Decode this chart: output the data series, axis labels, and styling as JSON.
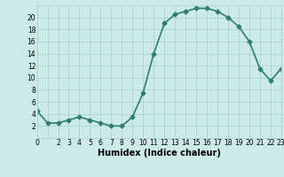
{
  "x": [
    0,
    1,
    2,
    3,
    4,
    5,
    6,
    7,
    8,
    9,
    10,
    11,
    12,
    13,
    14,
    15,
    16,
    17,
    18,
    19,
    20,
    21,
    22,
    23
  ],
  "y": [
    4.5,
    2.5,
    2.5,
    3.0,
    3.5,
    3.0,
    2.5,
    2.0,
    2.0,
    3.5,
    7.5,
    14.0,
    19.0,
    20.5,
    21.0,
    21.5,
    21.5,
    21.0,
    20.0,
    18.5,
    16.0,
    11.5,
    9.5,
    11.5
  ],
  "xlabel": "Humidex (Indice chaleur)",
  "xlim": [
    0,
    23
  ],
  "ylim": [
    0,
    22
  ],
  "yticks": [
    2,
    4,
    6,
    8,
    10,
    12,
    14,
    16,
    18,
    20
  ],
  "xticks": [
    0,
    1,
    2,
    3,
    4,
    5,
    6,
    7,
    8,
    9,
    10,
    11,
    12,
    13,
    14,
    15,
    16,
    17,
    18,
    19,
    20,
    21,
    22,
    23
  ],
  "xtick_labels": [
    "0",
    "",
    "2",
    "3",
    "4",
    "5",
    "6",
    "7",
    "8",
    "9",
    "10",
    "11",
    "12",
    "13",
    "14",
    "15",
    "16",
    "17",
    "18",
    "19",
    "20",
    "21",
    "22",
    "23"
  ],
  "line_color": "#2e7d6e",
  "marker": "D",
  "marker_size": 2.5,
  "bg_color": "#cceae7",
  "grid_color": "#aad4d0",
  "xlabel_fontsize": 7,
  "tick_fontsize": 5.5,
  "line_width": 1.2
}
